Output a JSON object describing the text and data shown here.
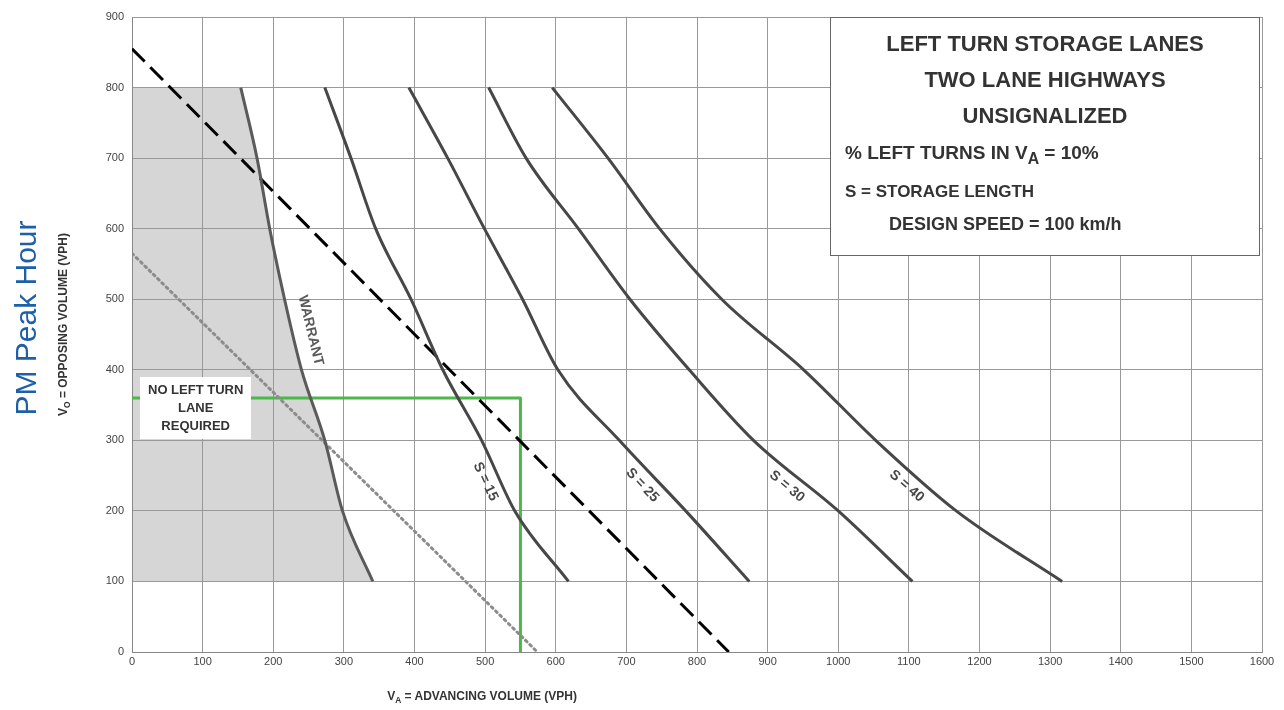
{
  "chart_data": {
    "type": "line",
    "title": "LEFT TURN STORAGE LANES\nTWO LANE HIGHWAYS\nUNSIGNALIZED",
    "xlabel": "V$_{A}$ = ADVANCING VOLUME (VPH)",
    "ylabel": "V$_{O}$ = OPPOSING VOLUME (VPH)",
    "annotations": [
      "% LEFT TURNS IN V$_{A}$ = 10%",
      "S = STORAGE LENGTH",
      "DESIGN SPEED = 100 km/h",
      "PM Peak Hour",
      "NO LEFT TURN\nLANE\nREQUIRED"
    ],
    "xlim": [
      0,
      1600
    ],
    "xticks": [
      0,
      100,
      200,
      300,
      400,
      500,
      600,
      700,
      800,
      900,
      1000,
      1100,
      1200,
      1300,
      1400,
      1500,
      1600
    ],
    "ylim": [
      0,
      900
    ],
    "yticks": [
      0,
      100,
      200,
      300,
      400,
      500,
      600,
      700,
      800,
      900
    ],
    "grid": true,
    "legend": false,
    "marker": "none",
    "line_style": "solid",
    "series": [
      {
        "name": "S = 15",
        "color": "#474747",
        "x": [
          273,
          310,
          345,
          395,
          440,
          495,
          542,
          618
        ],
        "values": [
          800,
          700,
          600,
          500,
          400,
          300,
          200,
          100
        ]
      },
      {
        "name": "S = 25",
        "color": "#474747",
        "x": [
          392,
          447,
          499,
          553,
          603,
          690,
          784,
          874
        ],
        "values": [
          800,
          700,
          600,
          500,
          400,
          300,
          200,
          100
        ]
      },
      {
        "name": "S = 30",
        "color": "#474747",
        "x": [
          505,
          558,
          632,
          705,
          789,
          880,
          1000,
          1105
        ],
        "values": [
          800,
          700,
          600,
          500,
          400,
          300,
          200,
          100
        ]
      },
      {
        "name": "S = 40",
        "color": "#474747",
        "x": [
          595,
          674,
          747,
          835,
          951,
          1053,
          1167,
          1317
        ],
        "values": [
          800,
          700,
          600,
          500,
          400,
          300,
          200,
          100
        ]
      },
      {
        "name": "WARRANT",
        "color": "#5a5a5a",
        "x": [
          154,
          177,
          195,
          216,
          240,
          273,
          298,
          341
        ],
        "values": [
          800,
          700,
          600,
          500,
          400,
          300,
          200,
          100
        ]
      },
      {
        "color": "#000000",
        "line_style": "dashed",
        "x": [
          0,
          845
        ],
        "values": [
          855,
          0
        ]
      },
      {
        "color": "#8c8c8c",
        "line_style": "dotted",
        "x": [
          0,
          574
        ],
        "values": [
          565,
          0
        ]
      },
      {
        "color": "#4cb848",
        "x": [
          0,
          550,
          550
        ],
        "values": [
          360,
          360,
          0
        ]
      }
    ]
  }
}
